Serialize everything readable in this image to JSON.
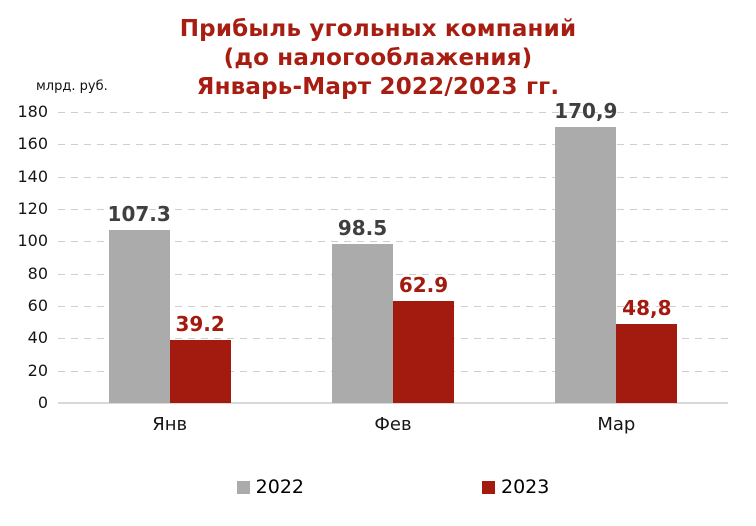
{
  "chart_data": {
    "type": "bar",
    "title_lines": [
      "Прибыль угольных компаний",
      "(до налогооблажения)",
      "Январь-Март 2022/2023 гг."
    ],
    "title_color": "#a81d12",
    "unit_label": "млрд. руб.",
    "categories": [
      "Янв",
      "Фев",
      "Мар"
    ],
    "series": [
      {
        "name": "2022",
        "color": "#ababab",
        "label_color": "#3f3f3f",
        "values": [
          107.3,
          98.5,
          170.9
        ],
        "value_labels": [
          "107.3",
          "98.5",
          "170,9"
        ]
      },
      {
        "name": "2023",
        "color": "#a21b0e",
        "label_color": "#a21b0e",
        "values": [
          39.2,
          62.9,
          48.8
        ],
        "value_labels": [
          "39.2",
          "62.9",
          "48,8"
        ]
      }
    ],
    "ylim": [
      0,
      180
    ],
    "ytick_step": 20,
    "grid": "horizontal-dashed",
    "gridline_color": "#cfcfcf",
    "legend_position": "bottom"
  }
}
